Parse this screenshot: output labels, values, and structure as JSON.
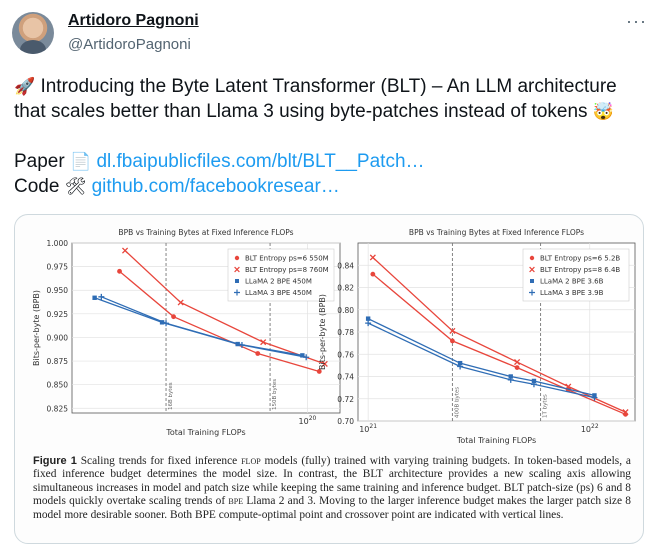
{
  "author": {
    "name": "Artidoro Pagnoni",
    "handle": "@ArtidoroPagnoni"
  },
  "more_icon": "more-horizontal-icon",
  "tweet": {
    "line1": "Introducing the Byte Latent Transformer (BLT) – An LLM architecture",
    "line2": "that scales better than Llama 3 using byte-patches instead of tokens",
    "paper_label": "Paper",
    "paper_link": "dl.fbaipublicfiles.com/blt/BLT__Patch…",
    "code_label": "Code",
    "code_link": "github.com/facebookresear…",
    "emojis": [
      "rocket-icon",
      "exploding-head-icon",
      "document-icon",
      "tools-icon"
    ]
  },
  "figure": {
    "caption_label": "Figure 1",
    "caption_parts": [
      "Scaling trends for fixed inference ",
      "flop",
      " models (fully) trained with varying training budgets. In token-based models, a fixed inference budget determines the model size. In contrast, the BLT architecture provides a new scaling axis allowing simultaneous increases in model and patch size while keeping the same training and inference budget. BLT patch-size (ps) 6 and 8 models quickly overtake scaling trends of ",
      "bpe",
      " Llama 2 and 3. Moving to the larger inference budget makes the larger patch size 8 model more desirable sooner. Both BPE compute-optimal point and crossover point are indicated with vertical lines."
    ]
  },
  "chart_data": [
    {
      "type": "line",
      "title": "BPB vs Training Bytes at Fixed Inference FLOPs",
      "xlabel": "Total Training FLOPs",
      "ylabel": "Bits-per-byte (BPB)",
      "xscale": "log",
      "xlim": [
        1.5e+19,
        1.3e+20
      ],
      "ylim": [
        0.82,
        1.0
      ],
      "xticks": [
        {
          "value": 1e+20,
          "label": "10^20"
        }
      ],
      "yticks": [
        0.825,
        0.85,
        0.875,
        0.9,
        0.925,
        0.95,
        0.975,
        1.0
      ],
      "ytick_labels": [
        "0.825",
        "0.850",
        "0.875",
        "0.900",
        "0.925",
        "0.950",
        "0.975",
        "1.000"
      ],
      "grid": true,
      "legend_position": "top-right",
      "vlines": [
        {
          "x": 3.2e+19,
          "label": "16B bytes"
        },
        {
          "x": 7.4e+19,
          "label": "150B bytes"
        }
      ],
      "series": [
        {
          "name": "BLT Entropy ps=6 550M",
          "color": "#e8463c",
          "marker": "o",
          "x": [
            2.2e+19,
            3.4e+19,
            6.7e+19,
            1.1e+20,
            1.7e+20
          ],
          "y": [
            0.97,
            0.922,
            0.883,
            0.864,
            0.846
          ]
        },
        {
          "name": "BLT Entropy ps=8 760M",
          "color": "#e8463c",
          "marker": "x",
          "x": [
            2.3e+19,
            3.6e+19,
            7e+19,
            1.15e+20,
            1.75e+20
          ],
          "y": [
            0.992,
            0.937,
            0.895,
            0.872,
            0.853
          ]
        },
        {
          "name": "LLaMA 2 BPE 450M",
          "color": "#2f6db5",
          "marker": "s",
          "x": [
            1.8e+19,
            3.1e+19,
            5.7e+19,
            9.6e+19,
            1.55e+20
          ],
          "y": [
            0.942,
            0.916,
            0.893,
            0.881,
            0.868
          ]
        },
        {
          "name": "LLaMA 3 BPE 450M",
          "color": "#2f6db5",
          "marker": "+",
          "x": [
            1.9e+19,
            3.2e+19,
            5.9e+19,
            9.9e+19,
            1.6e+20
          ],
          "y": [
            0.943,
            0.915,
            0.892,
            0.879,
            0.866
          ]
        }
      ]
    },
    {
      "type": "line",
      "title": "BPB vs Training Bytes at Fixed Inference FLOPs",
      "xlabel": "Total Training FLOPs",
      "ylabel": "Bits-per-byte (BPB)",
      "xscale": "log",
      "xlim": [
        9e+20,
        1.6e+22
      ],
      "ylim": [
        0.7,
        0.86
      ],
      "xticks": [
        {
          "value": 1e+21,
          "label": "10^21"
        },
        {
          "value": 1e+22,
          "label": "10^22"
        }
      ],
      "yticks": [
        0.7,
        0.72,
        0.74,
        0.76,
        0.78,
        0.8,
        0.82,
        0.84
      ],
      "ytick_labels": [
        "0.70",
        "0.72",
        "0.74",
        "0.76",
        "0.78",
        "0.80",
        "0.82",
        "0.84"
      ],
      "grid": true,
      "legend_position": "top-right",
      "vlines": [
        {
          "x": 2.4e+21,
          "label": "400B bytes"
        },
        {
          "x": 6e+21,
          "label": "1T bytes"
        }
      ],
      "series": [
        {
          "name": "BLT Entropy ps=6 5.2B",
          "color": "#e8463c",
          "marker": "o",
          "x": [
            1.05e+21,
            2.4e+21,
            4.7e+21,
            8e+21,
            1.45e+22
          ],
          "y": [
            0.832,
            0.772,
            0.748,
            0.728,
            0.706
          ]
        },
        {
          "name": "BLT Entropy ps=8 6.4B",
          "color": "#e8463c",
          "marker": "x",
          "x": [
            1.05e+21,
            2.4e+21,
            4.7e+21,
            8e+21,
            1.45e+22
          ],
          "y": [
            0.847,
            0.781,
            0.753,
            0.731,
            0.708
          ]
        },
        {
          "name": "LLaMA 2 BPE 3.6B",
          "color": "#2f6db5",
          "marker": "s",
          "x": [
            1e+21,
            2.6e+21,
            4.4e+21,
            5.6e+21,
            1.05e+22
          ],
          "y": [
            0.792,
            0.752,
            0.74,
            0.736,
            0.723
          ]
        },
        {
          "name": "LLaMA 3 BPE 3.9B",
          "color": "#2f6db5",
          "marker": "+",
          "x": [
            1e+21,
            2.6e+21,
            4.4e+21,
            5.6e+21,
            1.05e+22
          ],
          "y": [
            0.788,
            0.749,
            0.737,
            0.733,
            0.721
          ]
        }
      ]
    }
  ]
}
